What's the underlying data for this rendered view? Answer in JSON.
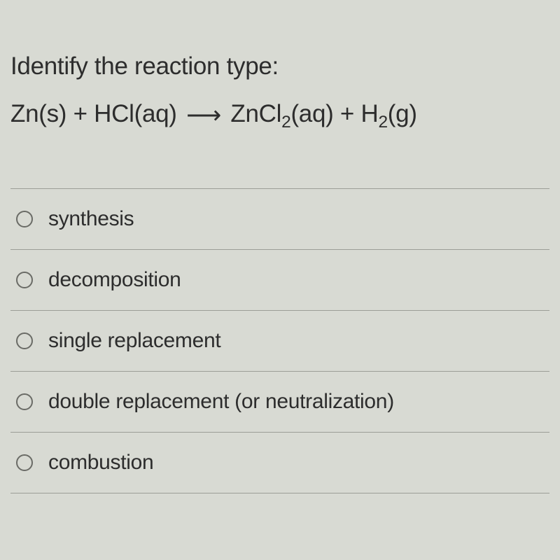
{
  "question": {
    "prompt": "Identify the reaction type:",
    "equation": {
      "reactant1": "Zn(s)",
      "plus1": " + ",
      "reactant2_base": "HCl(aq)",
      "arrow": "⟶",
      "product1_pre": "ZnCl",
      "product1_sub": "2",
      "product1_post": "(aq)",
      "plus2": " + ",
      "product2_pre": "H",
      "product2_sub": "2",
      "product2_post": "(g)"
    }
  },
  "options": [
    {
      "label": "synthesis",
      "selected": false
    },
    {
      "label": "decomposition",
      "selected": false
    },
    {
      "label": "single replacement",
      "selected": false
    },
    {
      "label": "double replacement (or neutralization)",
      "selected": false
    },
    {
      "label": "combustion",
      "selected": false
    }
  ],
  "colors": {
    "background": "#d8dad3",
    "text": "#2d2d2d",
    "divider": "#9b9d97",
    "radio_border": "#6a6b66"
  },
  "typography": {
    "prompt_fontsize": 35,
    "equation_fontsize": 35,
    "option_fontsize": 30
  }
}
